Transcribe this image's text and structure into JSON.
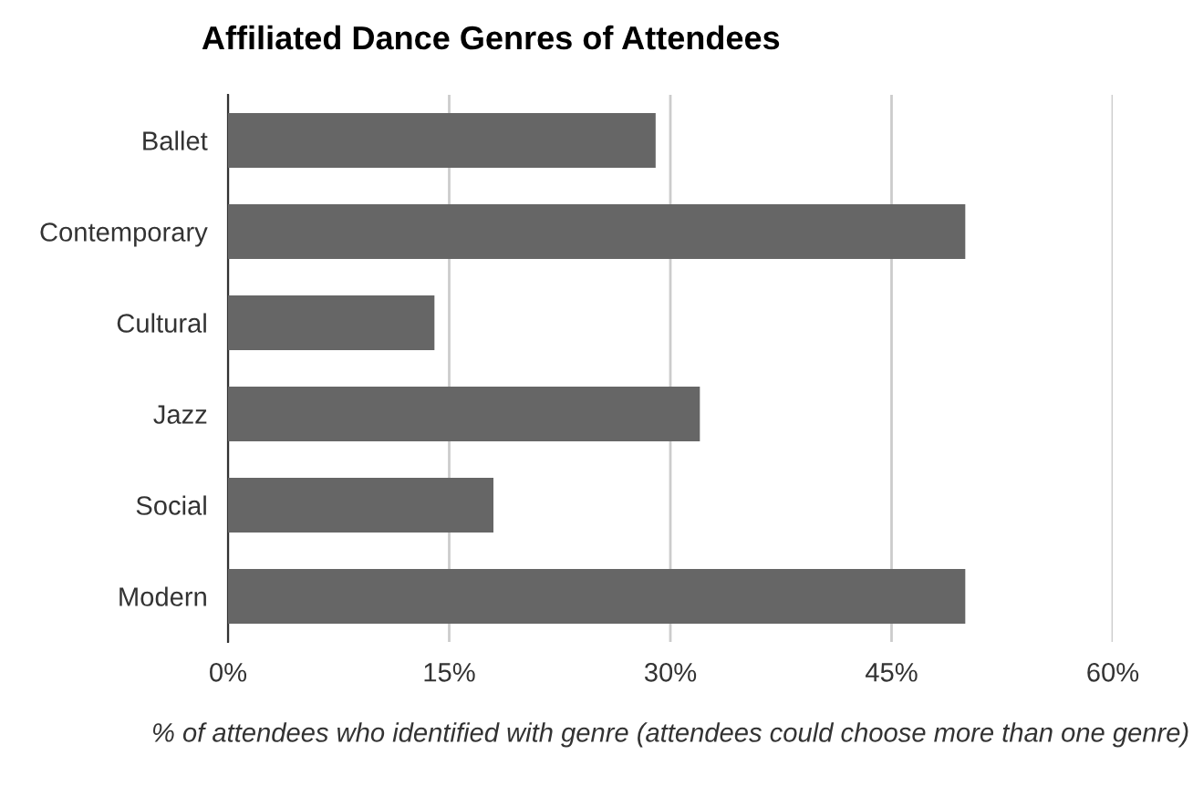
{
  "chart_data": {
    "type": "bar",
    "orientation": "horizontal",
    "title": "Affiliated Dance Genres of Attendees",
    "xlabel": "% of attendees who identified with genre (attendees could choose more than one genre)",
    "categories": [
      "Ballet",
      "Contemporary",
      "Cultural",
      "Jazz",
      "Social",
      "Modern"
    ],
    "values": [
      29,
      50,
      14,
      32,
      18,
      50
    ],
    "color": "#666666",
    "xlim": [
      0,
      60
    ],
    "xticks": [
      {
        "value": 0,
        "label": "0%"
      },
      {
        "value": 15,
        "label": "15%"
      },
      {
        "value": 30,
        "label": "30%"
      },
      {
        "value": 45,
        "label": "45%"
      },
      {
        "value": 60,
        "label": "60%"
      }
    ],
    "grid": "x"
  }
}
